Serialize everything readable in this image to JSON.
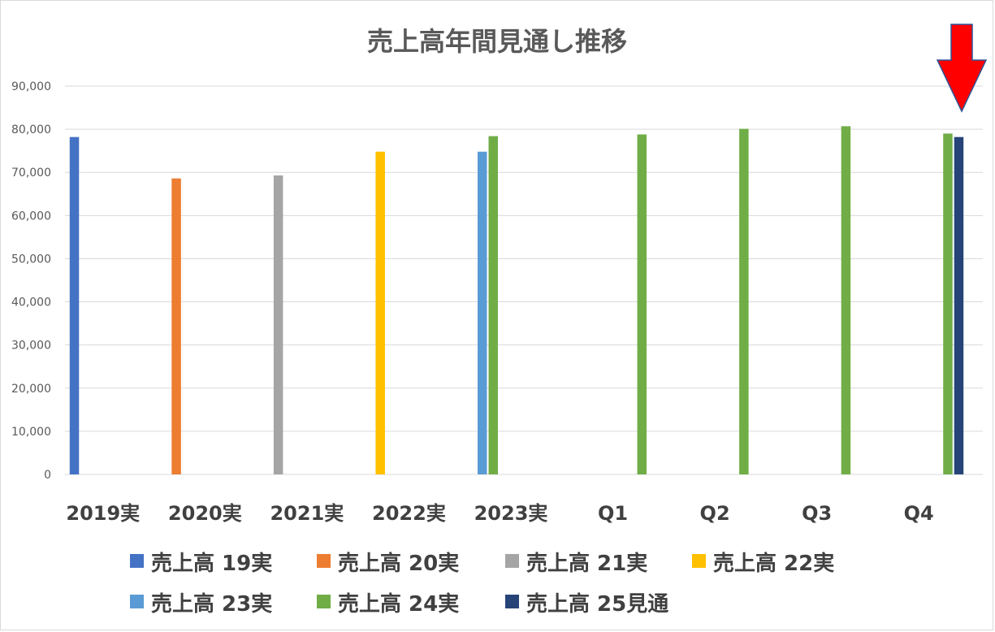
{
  "chart_data": {
    "type": "bar",
    "title": "売上高年間見通し推移",
    "xlabel": "",
    "ylabel": "",
    "ylim": [
      0,
      90000
    ],
    "y_ticks": [
      "0",
      "10,000",
      "20,000",
      "30,000",
      "40,000",
      "50,000",
      "60,000",
      "70,000",
      "80,000",
      "90,000"
    ],
    "grid": true,
    "legend_position": "bottom",
    "categories": [
      "2019実",
      "2020実",
      "2021実",
      "2022実",
      "2023実",
      "Q1",
      "Q2",
      "Q3",
      "Q4"
    ],
    "series": [
      {
        "name": "売上高 19実",
        "color": "#4472c4",
        "values": [
          78200,
          null,
          null,
          null,
          null,
          null,
          null,
          null,
          null
        ]
      },
      {
        "name": "売上高 20実",
        "color": "#ed7d31",
        "values": [
          null,
          68600,
          null,
          null,
          null,
          null,
          null,
          null,
          null
        ]
      },
      {
        "name": "売上高 21実",
        "color": "#a5a5a5",
        "values": [
          null,
          null,
          69300,
          null,
          null,
          null,
          null,
          null,
          null
        ]
      },
      {
        "name": "売上高 22実",
        "color": "#ffc000",
        "values": [
          null,
          null,
          null,
          74800,
          null,
          null,
          null,
          null,
          null
        ]
      },
      {
        "name": "売上高 23実",
        "color": "#5b9bd5",
        "values": [
          null,
          null,
          null,
          null,
          74800,
          null,
          null,
          null,
          null
        ]
      },
      {
        "name": "売上高 24実",
        "color": "#70ad47",
        "values": [
          null,
          null,
          null,
          null,
          78400,
          78800,
          80100,
          80700,
          79000
        ]
      },
      {
        "name": "売上高 25見通",
        "color": "#264478",
        "values": [
          null,
          null,
          null,
          null,
          null,
          null,
          null,
          null,
          78200
        ]
      }
    ],
    "annotation": {
      "type": "arrow-down-icon",
      "color": "#ff0000",
      "target_category": "Q4"
    }
  }
}
